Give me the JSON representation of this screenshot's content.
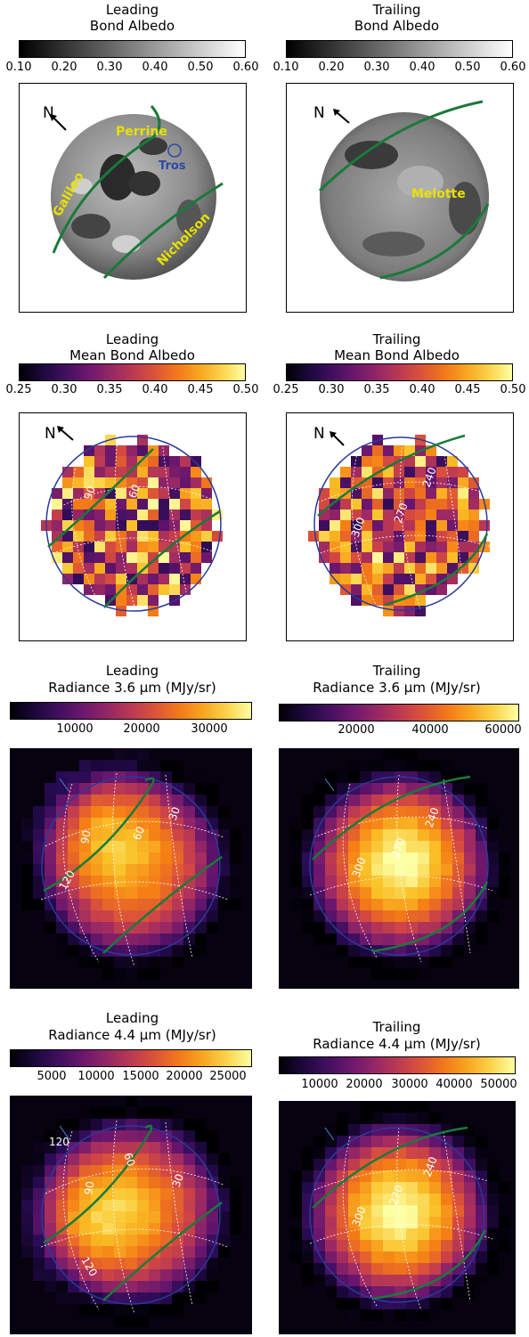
{
  "panels": {
    "p1": {
      "title1": "Leading",
      "title2": "Bond Albedo",
      "ticks": [
        "0.10",
        "0.20",
        "0.30",
        "0.40",
        "0.50",
        "0.60"
      ]
    },
    "p2": {
      "title1": "Trailing",
      "title2": "Bond Albedo",
      "ticks": [
        "0.10",
        "0.20",
        "0.30",
        "0.40",
        "0.50",
        "0.60"
      ]
    },
    "p3": {
      "title1": "Leading",
      "title2": "Mean Bond Albedo",
      "ticks": [
        "0.25",
        "0.30",
        "0.35",
        "0.40",
        "0.45",
        "0.50"
      ]
    },
    "p4": {
      "title1": "Trailing",
      "title2": "Mean Bond Albedo",
      "ticks": [
        "0.25",
        "0.30",
        "0.35",
        "0.40",
        "0.45",
        "0.50"
      ]
    },
    "p5": {
      "title1": "Leading",
      "title2": "Radiance 3.6 μm (MJy/sr)",
      "ticks": [
        "10000",
        "20000",
        "30000"
      ]
    },
    "p6": {
      "title1": "Trailing",
      "title2": "Radiance 3.6 μm (MJy/sr)",
      "ticks": [
        "20000",
        "40000",
        "60000"
      ]
    },
    "p7": {
      "title1": "Leading",
      "title2": "Radiance 4.4 μm (MJy/sr)",
      "ticks": [
        "5000",
        "10000",
        "15000",
        "20000",
        "25000"
      ]
    },
    "p8": {
      "title1": "Trailing",
      "title2": "Radiance 4.4 μm (MJy/sr)",
      "ticks": [
        "10000",
        "20000",
        "30000",
        "40000",
        "50000"
      ]
    }
  },
  "labels": {
    "north": "N",
    "galileo": "Galileo",
    "perrine": "Perrine",
    "tros": "Tros",
    "nicholson": "Nicholson",
    "melotte": "Melotte",
    "lon_30": "30",
    "lon_60": "60",
    "lon_90": "90",
    "lon_120": "120",
    "lon_240": "240",
    "lon_270": "270",
    "lon_300": "300"
  },
  "colors": {
    "region_outline": "#1a7a3a",
    "region_label": "#e8e000",
    "tros_label": "#2a4aa8",
    "limb": "#2a3a9a",
    "grid": "#ffffff"
  },
  "colormaps": {
    "albedo": "gray",
    "mean_albedo": "inferno",
    "radiance": "inferno"
  }
}
